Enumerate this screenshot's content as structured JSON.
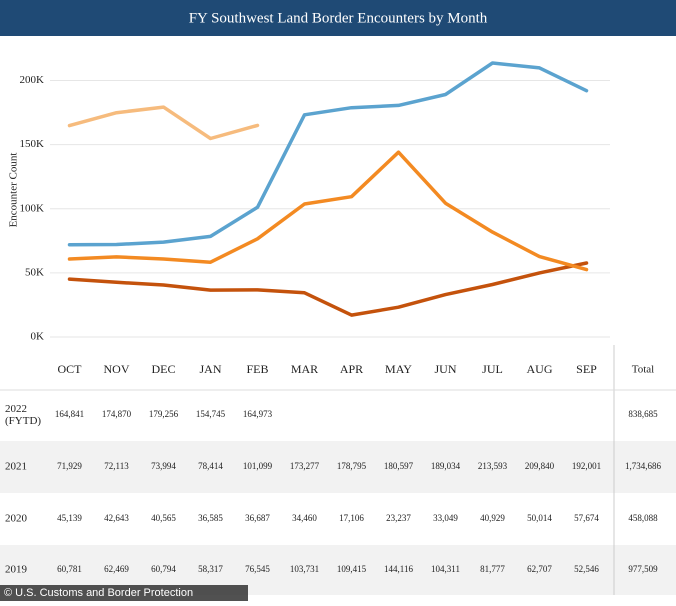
{
  "chart_data": {
    "type": "line",
    "title": "FY Southwest Land Border Encounters by Month",
    "y_label": "Encounter Count",
    "categories": [
      "OCT",
      "NOV",
      "DEC",
      "JAN",
      "FEB",
      "MAR",
      "APR",
      "MAY",
      "JUN",
      "JUL",
      "AUG",
      "SEP"
    ],
    "total_header": "Total",
    "ylim": [
      0,
      230000
    ],
    "yticks": [
      {
        "value": 0,
        "label": "0K"
      },
      {
        "value": 50000,
        "label": "50K"
      },
      {
        "value": 100000,
        "label": "100K"
      },
      {
        "value": 150000,
        "label": "150K"
      },
      {
        "value": 200000,
        "label": "200K"
      }
    ],
    "grid": true,
    "series": [
      {
        "name": "2022 (FYTD)",
        "color": "#f6bb7d",
        "values": [
          164841,
          174870,
          179256,
          154745,
          164973,
          null,
          null,
          null,
          null,
          null,
          null,
          null
        ],
        "value_labels": [
          "164,841",
          "174,870",
          "179,256",
          "154,745",
          "164,973",
          null,
          null,
          null,
          null,
          null,
          null,
          null
        ],
        "total": "838,685"
      },
      {
        "name": "2021",
        "color": "#5ba3cf",
        "values": [
          71929,
          72113,
          73994,
          78414,
          101099,
          173277,
          178795,
          180597,
          189034,
          213593,
          209840,
          192001
        ],
        "value_labels": [
          "71,929",
          "72,113",
          "73,994",
          "78,414",
          "101,099",
          "173,277",
          "178,795",
          "180,597",
          "189,034",
          "213,593",
          "209,840",
          "192,001"
        ],
        "total": "1,734,686"
      },
      {
        "name": "2020",
        "color": "#c4520c",
        "values": [
          45139,
          42643,
          40565,
          36585,
          36687,
          34460,
          17106,
          23237,
          33049,
          40929,
          50014,
          57674
        ],
        "value_labels": [
          "45,139",
          "42,643",
          "40,565",
          "36,585",
          "36,687",
          "34,460",
          "17,106",
          "23,237",
          "33,049",
          "40,929",
          "50,014",
          "57,674"
        ],
        "total": "458,088"
      },
      {
        "name": "2019",
        "color": "#f38a22",
        "values": [
          60781,
          62469,
          60794,
          58317,
          76545,
          103731,
          109415,
          144116,
          104311,
          81777,
          62707,
          52546
        ],
        "value_labels": [
          "60,781",
          "62,469",
          "60,794",
          "58,317",
          "76,545",
          "103,731",
          "109,415",
          "144,116",
          "104,311",
          "81,777",
          "62,707",
          "52,546"
        ],
        "total": "977,509"
      }
    ],
    "credit": "© U.S. Customs and Border Protection"
  }
}
